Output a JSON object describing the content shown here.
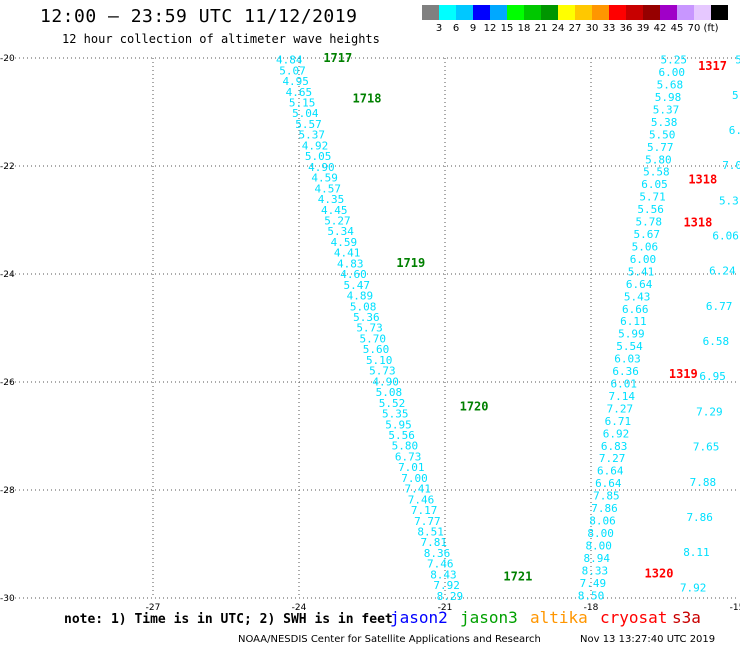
{
  "header": {
    "title": "12:00 – 23:59 UTC 11/12/2019",
    "subtitle": "12 hour collection of altimeter wave heights"
  },
  "legend": {
    "colors": [
      "#808080",
      "#00ffff",
      "#00c8ff",
      "#0000ff",
      "#00a8ff",
      "#00ff00",
      "#00c800",
      "#009600",
      "#ffff00",
      "#ffc800",
      "#ff9600",
      "#ff0000",
      "#c80000",
      "#960000",
      "#a000c8",
      "#c896ff",
      "#e6c8ff",
      "#000000"
    ],
    "labels": [
      "3",
      "6",
      "9",
      "12",
      "15",
      "18",
      "21",
      "24",
      "27",
      "30",
      "33",
      "36",
      "39",
      "42",
      "45",
      "70",
      "(ft)"
    ]
  },
  "chart_data": {
    "type": "scatter",
    "xlim": [
      -30,
      -15
    ],
    "ylim": [
      -30,
      -20
    ],
    "x_ticks": [
      "-27",
      "-24",
      "-21",
      "-18",
      "-15"
    ],
    "x_tick_values": [
      -27,
      -24,
      -21,
      -18,
      -15
    ],
    "y_ticks": [
      "-20",
      "-22",
      "-24",
      "-26",
      "-28",
      "-30"
    ],
    "y_tick_values": [
      -20,
      -22,
      -24,
      -26,
      -28,
      -30
    ],
    "grid": true,
    "tracks": [
      {
        "satellite": "jason3",
        "color": "#00e0ff",
        "lon_start": -24.2,
        "lon_end": -20.9,
        "values": [
          "4.84",
          "5.07",
          "4.95",
          "4.65",
          "5.15",
          "5.04",
          "5.57",
          "5.37",
          "4.92",
          "5.05",
          "4.90",
          "4.59",
          "4.57",
          "4.35",
          "4.45",
          "5.27",
          "5.34",
          "4.59",
          "4.41",
          "4.83",
          "4.60",
          "5.47",
          "4.89",
          "5.08",
          "5.36",
          "5.73",
          "5.70",
          "5.60",
          "5.10",
          "5.73",
          "4.90",
          "5.08",
          "5.52",
          "5.35",
          "5.95",
          "5.56",
          "5.80",
          "6.73",
          "7.01",
          "7.00",
          "7.41",
          "7.46",
          "7.17",
          "7.77",
          "8.51",
          "7.81",
          "8.36",
          "7.46",
          "8.43",
          "7.92",
          "8.29"
        ]
      },
      {
        "satellite": "cryosat",
        "color": "#00e0ff",
        "lon_start": -16.3,
        "lon_end": -18.0,
        "values": [
          "5.25",
          "6.00",
          "5.68",
          "5.98",
          "5.37",
          "5.38",
          "5.50",
          "5.77",
          "5.80",
          "5.58",
          "6.05",
          "5.71",
          "5.56",
          "5.78",
          "5.67",
          "5.06",
          "6.00",
          "5.41",
          "6.64",
          "5.43",
          "6.66",
          "6.11",
          "5.99",
          "5.54",
          "6.03",
          "6.36",
          "6.01",
          "7.14",
          "7.27",
          "6.71",
          "6.92",
          "6.83",
          "7.27",
          "6.64",
          "6.64",
          "7.85",
          "7.86",
          "8.06",
          "8.00",
          "8.00",
          "8.94",
          "8.33",
          "7.49",
          "8.50"
        ]
      },
      {
        "satellite": "s3a",
        "color": "#00e0ff",
        "lon_start": -14.9,
        "lon_end": -15.9,
        "values": [
          "5.",
          "5.",
          "6.",
          "7.0",
          "5.3",
          "6.06",
          "6.24",
          "6.77",
          "6.58",
          "6.95",
          "7.29",
          "7.65",
          "7.88",
          "7.86",
          "8.11",
          "7.92"
        ]
      }
    ],
    "time_labels": [
      {
        "text": "1717",
        "satellite": "jason3",
        "color": "#008000",
        "lon": -23.5,
        "lat": -20.0
      },
      {
        "text": "1718",
        "satellite": "jason3",
        "color": "#008000",
        "lon": -22.9,
        "lat": -20.75
      },
      {
        "text": "1719",
        "satellite": "jason3",
        "color": "#008000",
        "lon": -22.0,
        "lat": -23.8
      },
      {
        "text": "1720",
        "satellite": "jason3",
        "color": "#008000",
        "lon": -20.7,
        "lat": -26.45
      },
      {
        "text": "1721",
        "satellite": "jason3",
        "color": "#008000",
        "lon": -19.8,
        "lat": -29.6
      },
      {
        "text": "1317",
        "satellite": "cryosat",
        "color": "#ff0000",
        "lon": -15.8,
        "lat": -20.15
      },
      {
        "text": "1318",
        "satellite": "cryosat",
        "color": "#ff0000",
        "lon": -16.0,
        "lat": -22.25
      },
      {
        "text": "1318",
        "satellite": "cryosat",
        "color": "#ff0000",
        "lon": -16.1,
        "lat": -23.05
      },
      {
        "text": "1319",
        "satellite": "cryosat",
        "color": "#ff0000",
        "lon": -16.4,
        "lat": -25.85
      },
      {
        "text": "1320",
        "satellite": "cryosat",
        "color": "#ff0000",
        "lon": -16.9,
        "lat": -29.55
      }
    ]
  },
  "footer": {
    "note": "note: 1) Time is in UTC; 2) SWH is in feet",
    "satellites": [
      {
        "name": "jason2",
        "color": "#0000ff"
      },
      {
        "name": "jason3",
        "color": "#00a000"
      },
      {
        "name": "altika",
        "color": "#ff9600"
      },
      {
        "name": "cryosat",
        "color": "#ff0000"
      },
      {
        "name": "s3a",
        "color": "#c80000"
      }
    ],
    "credit": "NOAA/NESDIS Center for Satellite Applications and Research",
    "timestamp": "Nov 13 13:27:40 UTC 2019"
  }
}
